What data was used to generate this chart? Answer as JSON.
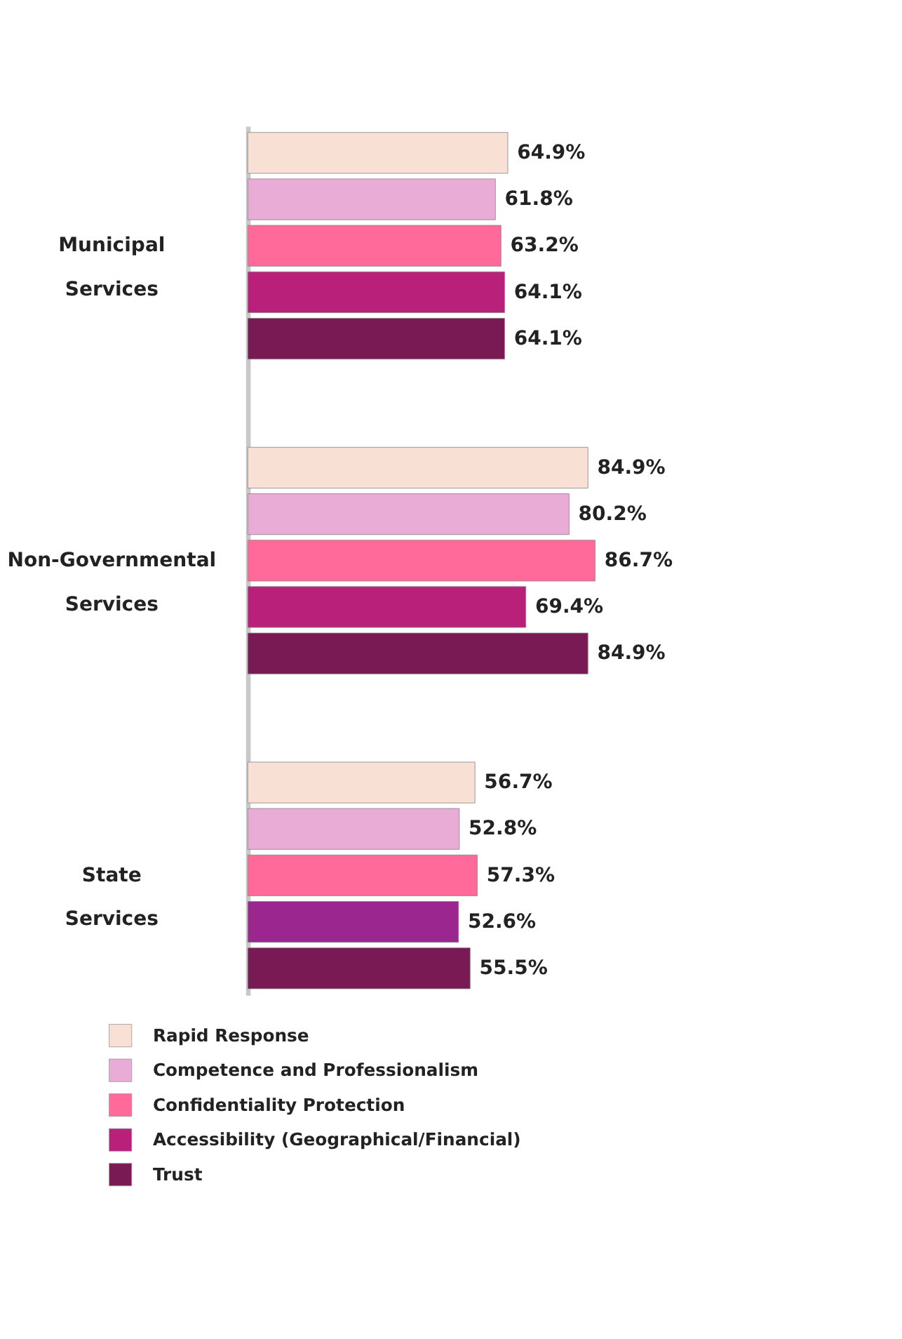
{
  "chart_data": {
    "type": "bar",
    "orientation": "horizontal",
    "categories": [
      "Municipal Services",
      "Non-Governmental Services",
      "State Services"
    ],
    "series": [
      {
        "name": "Rapid Response",
        "color": "#f8e1d4",
        "values": [
          64.9,
          84.9,
          56.7
        ],
        "value_labels": [
          "64.9%",
          "84.9%",
          "56.7%"
        ]
      },
      {
        "name": "Competence and Professionalism",
        "color": "#e8acd6",
        "values": [
          61.8,
          80.2,
          52.8
        ],
        "value_labels": [
          "61.8%",
          "80.2%",
          "52.8%"
        ]
      },
      {
        "name": "Confidentiality Protection",
        "color": "#ff6a9a",
        "values": [
          63.2,
          86.7,
          57.3
        ],
        "value_labels": [
          "63.2%",
          "86.7%",
          "57.3%"
        ]
      },
      {
        "name": "Accessibility (Geographical/Financial)",
        "color": "#b8207a",
        "colors": [
          "#b8207a",
          "#b8207a",
          "#9c2690"
        ],
        "values": [
          64.1,
          69.4,
          52.6
        ],
        "value_labels": [
          "64.1%",
          "69.4%",
          "52.6%"
        ]
      },
      {
        "name": "Trust",
        "color": "#7a1a55",
        "values": [
          64.1,
          84.9,
          55.5
        ],
        "value_labels": [
          "64.1%",
          "84.9%",
          "55.5%"
        ]
      }
    ],
    "legend": "bottom left",
    "grid": false
  }
}
